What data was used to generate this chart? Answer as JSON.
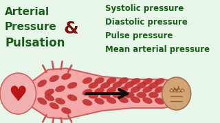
{
  "bg_color": "#e8f5e9",
  "text_left": [
    "Arterial",
    "Pressure",
    "Pulsation"
  ],
  "text_left_color": "#1a5c1a",
  "ampersand": "&",
  "ampersand_color": "#7a1010",
  "text_right": [
    "Systolic pressure",
    "Diastolic pressure",
    "Pulse pressure",
    "Mean arterial pressure"
  ],
  "text_right_color": "#1a5c1a",
  "artery_color": "#f5a8a8",
  "artery_border_color": "#d06060",
  "rbc_color": "#c03030",
  "heart_bg": "#f0b0b0",
  "heart_color": "#bb1515",
  "organ_color": "#d4a574",
  "organ_line": "#a07050",
  "arrow_color": "#111111",
  "ray_color": "#c85050"
}
